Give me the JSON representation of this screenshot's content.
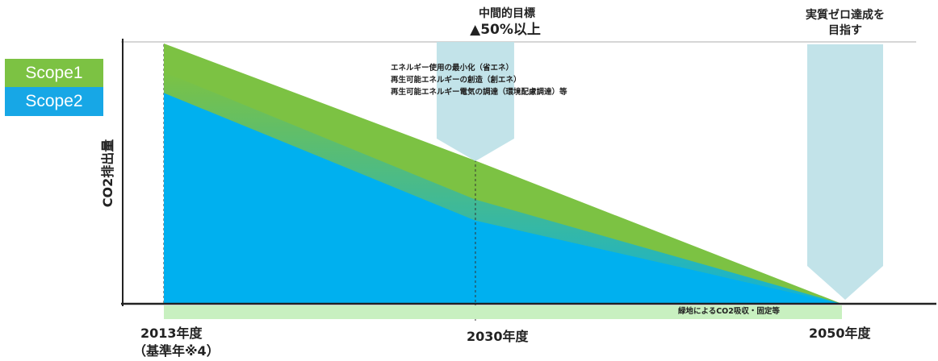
{
  "chart_data": {
    "type": "area",
    "ylabel": "CO2排出量",
    "x_ticks": [
      "2013年度",
      "2030年度",
      "2050年度"
    ],
    "x_tick_values": [
      2013,
      2030,
      2050
    ],
    "base_year_note": "（基準年※4）",
    "series": [
      {
        "name": "Scope1",
        "color": "#7cc243",
        "x": [
          2013,
          2030,
          2050
        ],
        "values": [
          100,
          55,
          0
        ]
      },
      {
        "name": "Scope2",
        "color": "#00b0ef",
        "x": [
          2013,
          2030,
          2050
        ],
        "values": [
          81,
          32,
          0
        ]
      }
    ],
    "xlim": [
      2013,
      2050
    ],
    "ylim": [
      0,
      100
    ],
    "annotations": {
      "midterm_title": "中間的目標",
      "midterm_target": "▲50%以上",
      "measures": [
        "エネルギー使用の最小化（省エネ）",
        "再生可能エネルギーの創造（創エネ）",
        "再生可能エネルギー電気の調達（環境配慮調達）等"
      ],
      "zero_line1": "実質ゼロ達成を",
      "zero_line2": "目指す",
      "absorption": "緑地によるCO2吸収・固定等"
    }
  }
}
